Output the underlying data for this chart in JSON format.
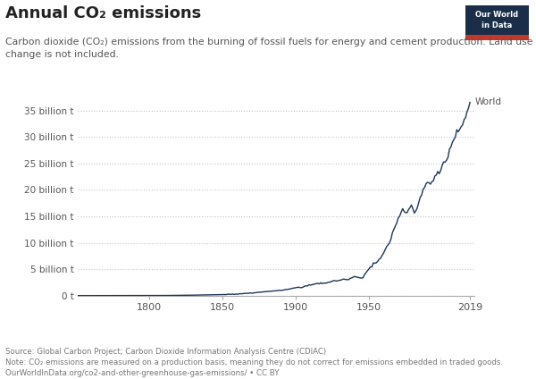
{
  "title": "Annual CO₂ emissions",
  "subtitle": "Carbon dioxide (CO₂) emissions from the burning of fossil fuels for energy and cement production. Land use\nchange is not included.",
  "source_text": "Source: Global Carbon Project; Carbon Dioxide Information Analysis Centre (CDIAC)\nNote: CO₂ emissions are measured on a production basis, meaning they do not correct for emissions embedded in traded goods.\nOurWorldInData.org/co2-and-other-greenhouse-gas-emissions/ • CC BY",
  "line_color": "#1d3557",
  "background_color": "#ffffff",
  "grid_color": "#c8c8c8",
  "label_color": "#555555",
  "owid_box_color": "#c0392b",
  "owid_stripe_color": "#e74c3c",
  "x_min": 1751,
  "x_max": 2022,
  "y_min": 0,
  "y_max": 38000000000.0,
  "yticks": [
    0,
    5000000000.0,
    10000000000.0,
    15000000000.0,
    20000000000.0,
    25000000000.0,
    30000000000.0,
    35000000000.0
  ],
  "ytick_labels": [
    "0 t",
    "5 billion t",
    "10 billion t",
    "15 billion t",
    "20 billion t",
    "25 billion t",
    "30 billion t",
    "35 billion t"
  ],
  "xticks": [
    1800,
    1850,
    1900,
    1950,
    2019
  ],
  "series_label": "World",
  "key_years": [
    1751,
    1760,
    1770,
    1780,
    1790,
    1800,
    1810,
    1820,
    1830,
    1840,
    1850,
    1860,
    1870,
    1875,
    1880,
    1885,
    1890,
    1895,
    1900,
    1905,
    1910,
    1913,
    1920,
    1925,
    1930,
    1935,
    1940,
    1945,
    1950,
    1955,
    1960,
    1965,
    1970,
    1973,
    1975,
    1979,
    1980,
    1982,
    1985,
    1988,
    1990,
    1992,
    1995,
    2000,
    2002,
    2005,
    2008,
    2010,
    2012,
    2015,
    2019
  ],
  "key_values": [
    0.003,
    0.004,
    0.006,
    0.009,
    0.013,
    0.02,
    0.03,
    0.054,
    0.09,
    0.14,
    0.2,
    0.3,
    0.5,
    0.62,
    0.76,
    0.88,
    1.0,
    1.2,
    1.5,
    1.7,
    2.0,
    2.2,
    2.4,
    2.7,
    2.9,
    3.1,
    3.6,
    3.3,
    5.1,
    6.2,
    8.0,
    10.8,
    14.7,
    16.5,
    15.5,
    17.4,
    16.4,
    15.8,
    18.5,
    20.5,
    21.5,
    21.0,
    22.5,
    24.5,
    25.0,
    27.5,
    29.5,
    30.5,
    31.5,
    33.0,
    36.2
  ]
}
